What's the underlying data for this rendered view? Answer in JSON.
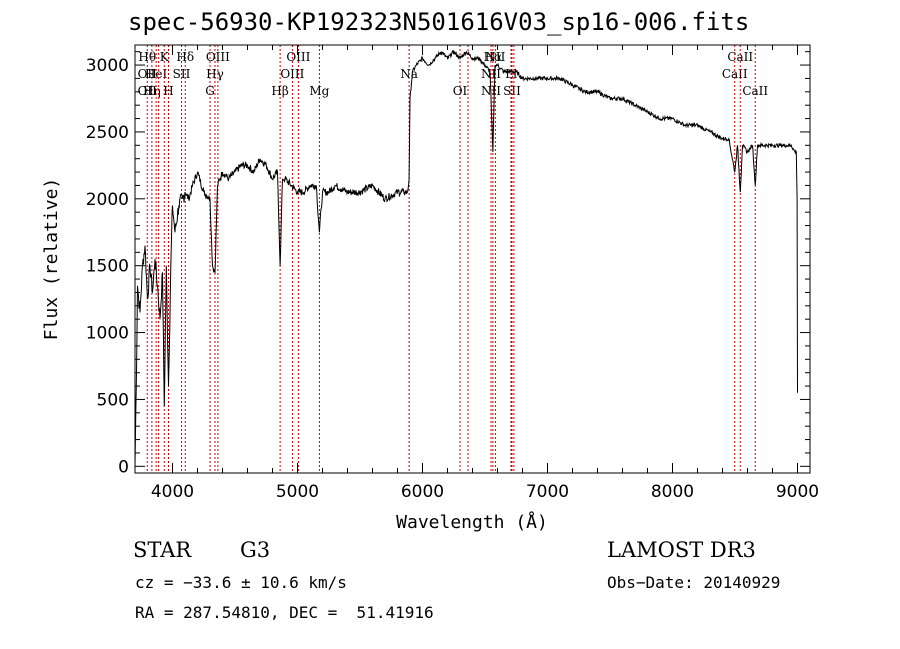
{
  "chart_data": {
    "type": "line",
    "title": "spec-56930-KP192323N501616V03_sp16-006.fits",
    "xlabel": "Wavelength (Å)",
    "ylabel": "Flux (relative)",
    "xlim": [
      3700,
      9100
    ],
    "ylim": [
      -50,
      3150
    ],
    "xticks": [
      4000,
      5000,
      6000,
      7000,
      8000,
      9000
    ],
    "yticks": [
      0,
      500,
      1000,
      1500,
      2000,
      2500,
      3000
    ],
    "grid": false,
    "series": [
      {
        "x": [
          3700,
          3710,
          3720,
          3740,
          3760,
          3780,
          3800,
          3820,
          3840,
          3860,
          3880,
          3900,
          3920,
          3934,
          3950,
          3968,
          3990,
          4000,
          4020,
          4050,
          4080,
          4100,
          4130,
          4160,
          4200,
          4250,
          4300,
          4320,
          4340,
          4360,
          4400,
          4450,
          4500,
          4550,
          4600,
          4650,
          4700,
          4750,
          4800,
          4840,
          4861,
          4880,
          4900,
          4950,
          5000,
          5050,
          5100,
          5150,
          5175,
          5200,
          5250,
          5300,
          5400,
          5500,
          5600,
          5700,
          5800,
          5850,
          5880,
          5893,
          5900,
          5920,
          5950,
          6000,
          6050,
          6100,
          6150,
          6200,
          6250,
          6300,
          6350,
          6400,
          6450,
          6500,
          6540,
          6563,
          6580,
          6600,
          6650,
          6700,
          6750,
          6800,
          6850,
          6900,
          6950,
          7000,
          7100,
          7200,
          7300,
          7400,
          7500,
          7600,
          7700,
          7800,
          7900,
          8000,
          8100,
          8200,
          8300,
          8400,
          8450,
          8498,
          8520,
          8542,
          8560,
          8600,
          8640,
          8662,
          8680,
          8700,
          8750,
          8800,
          8850,
          8900,
          8950,
          8980,
          8990,
          8997,
          9000
        ],
        "y": [
          0,
          600,
          1350,
          1150,
          1500,
          1650,
          1250,
          1500,
          1300,
          1550,
          1350,
          1100,
          1450,
          450,
          1500,
          600,
          1650,
          1950,
          1750,
          1950,
          2000,
          2050,
          2000,
          2100,
          2200,
          2050,
          2000,
          1500,
          1450,
          2100,
          2200,
          2150,
          2200,
          2250,
          2250,
          2200,
          2300,
          2250,
          2150,
          2200,
          1500,
          2150,
          2150,
          2100,
          2050,
          2050,
          2100,
          2100,
          1750,
          2050,
          2050,
          2100,
          2050,
          2050,
          2100,
          2000,
          2050,
          2050,
          2050,
          2150,
          2750,
          2950,
          3000,
          3050,
          3000,
          3050,
          3100,
          3050,
          3100,
          3050,
          3100,
          3050,
          3050,
          3000,
          2950,
          2350,
          3000,
          3000,
          2950,
          2950,
          2950,
          2900,
          2900,
          2900,
          2900,
          2900,
          2900,
          2850,
          2800,
          2800,
          2750,
          2750,
          2700,
          2650,
          2600,
          2600,
          2550,
          2550,
          2500,
          2450,
          2450,
          2200,
          2400,
          2050,
          2400,
          2350,
          2400,
          2100,
          2400,
          2400,
          2400,
          2400,
          2400,
          2400,
          2400,
          2350,
          2350,
          2000,
          550
        ]
      }
    ],
    "line_markers": [
      {
        "wl": 3798,
        "top": "Hθ",
        "mid": "OII",
        "bot": "OII"
      },
      {
        "wl": 3835,
        "top": "",
        "mid": "",
        "bot": "Hη"
      },
      {
        "wl": 3869,
        "top": "",
        "mid": "HeI",
        "bot": ""
      },
      {
        "wl": 3889,
        "top": "",
        "mid": "",
        "bot": ""
      },
      {
        "wl": 3934,
        "top": "K",
        "mid": "",
        "bot": ""
      },
      {
        "wl": 3968,
        "top": "",
        "mid": "",
        "bot": "H"
      },
      {
        "wl": 4072,
        "top": "",
        "mid": "SII",
        "bot": ""
      },
      {
        "wl": 4102,
        "top": "Hδ",
        "mid": "",
        "bot": ""
      },
      {
        "wl": 4300,
        "top": "",
        "mid": "",
        "bot": "G"
      },
      {
        "wl": 4340,
        "top": "",
        "mid": "Hγ",
        "bot": ""
      },
      {
        "wl": 4363,
        "top": "OIII",
        "mid": "",
        "bot": ""
      },
      {
        "wl": 4861,
        "top": "",
        "mid": "",
        "bot": "Hβ"
      },
      {
        "wl": 4959,
        "top": "",
        "mid": "OIII",
        "bot": ""
      },
      {
        "wl": 5007,
        "top": "OIII",
        "mid": "",
        "bot": ""
      },
      {
        "wl": 5175,
        "top": "",
        "mid": "",
        "bot": "Mg"
      },
      {
        "wl": 5893,
        "top": "",
        "mid": "Na",
        "bot": ""
      },
      {
        "wl": 6300,
        "top": "",
        "mid": "",
        "bot": "OI"
      },
      {
        "wl": 6364,
        "top": "",
        "mid": "",
        "bot": ""
      },
      {
        "wl": 6548,
        "top": "",
        "mid": "NII",
        "bot": "NII"
      },
      {
        "wl": 6563,
        "top": "Hα",
        "mid": "",
        "bot": ""
      },
      {
        "wl": 6583,
        "top": "NII",
        "mid": "",
        "bot": ""
      },
      {
        "wl": 6708,
        "top": "",
        "mid": "Li",
        "bot": ""
      },
      {
        "wl": 6716,
        "top": "",
        "mid": "",
        "bot": "SII"
      },
      {
        "wl": 6731,
        "top": "",
        "mid": "",
        "bot": ""
      },
      {
        "wl": 8498,
        "top": "",
        "mid": "CaII",
        "bot": ""
      },
      {
        "wl": 8542,
        "top": "CaII",
        "mid": "",
        "bot": ""
      },
      {
        "wl": 8662,
        "top": "",
        "mid": "",
        "bot": "CaII"
      }
    ]
  },
  "info": {
    "object_class": "STAR",
    "subclass": "G3",
    "survey": "LAMOST DR3",
    "cz": "cz = −33.6 ± 10.6 km/s",
    "obs_date": "Obs−Date: 20140929",
    "radec": "RA = 287.54810, DEC =  51.41916"
  }
}
